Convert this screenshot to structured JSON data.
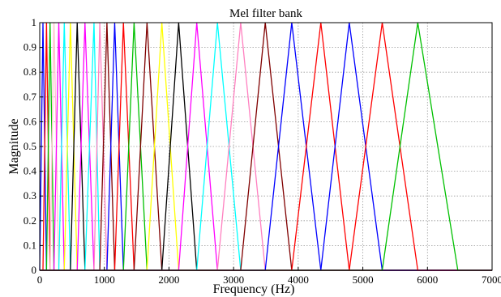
{
  "chart_data": {
    "type": "line",
    "title": "Mel filter bank",
    "xlabel": "Frequency (Hz)",
    "ylabel": "Magnitude",
    "xlim": [
      0,
      7000
    ],
    "ylim": [
      0,
      1
    ],
    "grid": true,
    "x_ticks": [
      "0",
      "1000",
      "2000",
      "3000",
      "4000",
      "5000",
      "6000",
      "7000"
    ],
    "y_ticks": [
      "0",
      "0.1",
      "0.2",
      "0.3",
      "0.4",
      "0.5",
      "0.6",
      "0.7",
      "0.8",
      "0.9",
      "1"
    ],
    "filter_edges_hz": [
      0,
      50,
      105,
      160,
      220,
      295,
      380,
      475,
      580,
      700,
      840,
      930,
      1040,
      1160,
      1295,
      1460,
      1660,
      1890,
      2150,
      2430,
      2750,
      3110,
      3490,
      3900,
      4350,
      4790,
      5300,
      5850,
      6470
    ],
    "series_colors": [
      "#0000ff",
      "#ff0000",
      "#00c000",
      "#ffc0cb",
      "#ff00ff",
      "#00ffff",
      "#ffff00",
      "#000000",
      "#ff00ff",
      "#00ffff",
      "#ff80c0",
      "#800000",
      "#0000ff",
      "#ff0000",
      "#00c000",
      "#800000",
      "#ffff00",
      "#000000",
      "#ff00ff",
      "#00ffff",
      "#ff80c0",
      "#800000",
      "#0000ff",
      "#ff0000"
    ]
  }
}
